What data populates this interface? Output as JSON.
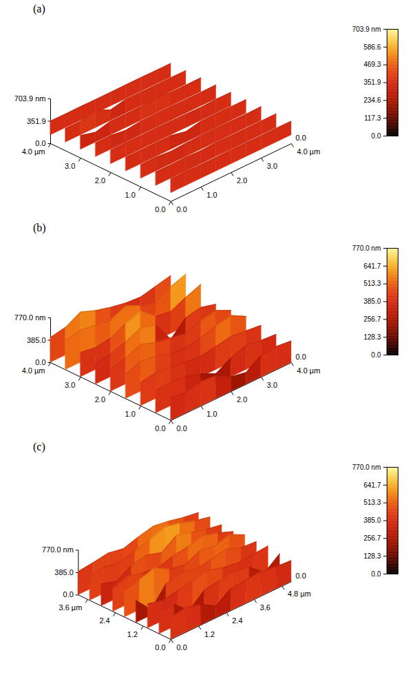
{
  "chart_data": [
    {
      "type": "surface",
      "title": "(a)",
      "x": [
        0,
        0.5,
        1,
        1.5,
        2,
        2.5,
        3,
        3.5,
        4
      ],
      "y": [
        0,
        0.5,
        1,
        1.5,
        2,
        2.5,
        3,
        3.5,
        4
      ],
      "z": [
        [
          352,
          355,
          350,
          348,
          353,
          351,
          349,
          352,
          350
        ],
        [
          350,
          347,
          352,
          340,
          355,
          350,
          348,
          351,
          353
        ],
        [
          349,
          352,
          330,
          345,
          351,
          356,
          350,
          347,
          352
        ],
        [
          353,
          348,
          351,
          350,
          300,
          349,
          352,
          350,
          348
        ],
        [
          350,
          354,
          349,
          352,
          350,
          347,
          340,
          353,
          350
        ],
        [
          348,
          351,
          320,
          350,
          353,
          351,
          349,
          350,
          352
        ],
        [
          352,
          290,
          350,
          349,
          351,
          380,
          350,
          348,
          351
        ],
        [
          350,
          349,
          410,
          300,
          352,
          350,
          349,
          352,
          350
        ],
        [
          351,
          350,
          352,
          349,
          350,
          351,
          353,
          350,
          349
        ]
      ],
      "xlim": [
        0,
        4
      ],
      "xticks": [
        {
          "value": 0,
          "label": "0.0"
        },
        {
          "value": 1,
          "label": "1.0"
        },
        {
          "value": 2,
          "label": "2.0"
        },
        {
          "value": 3,
          "label": "3.0"
        },
        {
          "value": 4,
          "label": "4.0 µm"
        }
      ],
      "ylim": [
        0,
        4
      ],
      "yticks": [
        {
          "value": 0,
          "label": "0.0"
        },
        {
          "value": 1,
          "label": "1.0"
        },
        {
          "value": 2,
          "label": "2.0"
        },
        {
          "value": 3,
          "label": "3.0"
        },
        {
          "value": 4,
          "label": "4.0 µm"
        }
      ],
      "zlim": [
        0,
        703.9
      ],
      "zticks": [
        {
          "value": 0,
          "label": "0.0"
        },
        351.9,
        {
          "value": 703.9,
          "label": "703.9 nm"
        }
      ],
      "colorbar": {
        "range": [
          0,
          703.9
        ],
        "ticks": [
          {
            "value": 0,
            "label": "0.0"
          },
          117.3,
          234.6,
          351.9,
          469.3,
          586.6,
          {
            "value": 703.9,
            "label": "703.9 nm"
          }
        ]
      },
      "annotations": [
        "0.0"
      ]
    },
    {
      "type": "surface",
      "title": "(b)",
      "x": [
        0,
        0.5,
        1,
        1.5,
        2,
        2.5,
        3,
        3.5,
        4
      ],
      "y": [
        0,
        0.5,
        1,
        1.5,
        2,
        2.5,
        3,
        3.5,
        4
      ],
      "z": [
        [
          380,
          360,
          420,
          390,
          250,
          200,
          380,
          400,
          370
        ],
        [
          390,
          410,
          380,
          300,
          180,
          330,
          420,
          380,
          360
        ],
        [
          400,
          450,
          420,
          380,
          360,
          400,
          450,
          420,
          390
        ],
        [
          420,
          520,
          480,
          400,
          380,
          430,
          500,
          560,
          420
        ],
        [
          380,
          450,
          560,
          470,
          420,
          380,
          470,
          520,
          400
        ],
        [
          350,
          400,
          480,
          600,
          520,
          150,
          400,
          450,
          380
        ],
        [
          420,
          380,
          420,
          550,
          640,
          420,
          380,
          500,
          600
        ],
        [
          500,
          560,
          520,
          480,
          600,
          480,
          420,
          560,
          650
        ],
        [
          430,
          480,
          620,
          520,
          450,
          400,
          380,
          440,
          500
        ]
      ],
      "xlim": [
        0,
        4
      ],
      "xticks": [
        {
          "value": 0,
          "label": "0.0"
        },
        {
          "value": 1,
          "label": "1.0"
        },
        {
          "value": 2,
          "label": "2.0"
        },
        {
          "value": 3,
          "label": "3.0"
        },
        {
          "value": 4,
          "label": "4.0 µm"
        }
      ],
      "ylim": [
        0,
        4
      ],
      "yticks": [
        {
          "value": 0,
          "label": "0.0"
        },
        {
          "value": 1,
          "label": "1.0"
        },
        {
          "value": 2,
          "label": "2.0"
        },
        {
          "value": 3,
          "label": "3.0"
        },
        {
          "value": 4,
          "label": "4.0 µm"
        }
      ],
      "zlim": [
        0,
        770
      ],
      "zticks": [
        {
          "value": 0,
          "label": "0.0"
        },
        {
          "value": 385,
          "label": "385.0"
        },
        {
          "value": 770,
          "label": "770.0 nm"
        }
      ],
      "colorbar": {
        "range": [
          0,
          770
        ],
        "ticks": [
          {
            "value": 0,
            "label": "0.0"
          },
          128.3,
          256.7,
          {
            "value": 385,
            "label": "385.0"
          },
          513.3,
          641.7,
          {
            "value": 770,
            "label": "770.0 nm"
          }
        ]
      },
      "annotations": [
        "0.0"
      ]
    },
    {
      "type": "surface",
      "title": "(c)",
      "x": [
        0,
        0.65,
        1.3,
        1.95,
        2.6,
        3.25,
        3.9,
        4.55,
        5.2
      ],
      "y": [
        0,
        0.5,
        1,
        1.5,
        2,
        2.5,
        3,
        3.5,
        4
      ],
      "z": [
        [
          380,
          420,
          350,
          200,
          380,
          400,
          420,
          380,
          360
        ],
        [
          400,
          380,
          150,
          380,
          420,
          450,
          400,
          180,
          380
        ],
        [
          420,
          350,
          400,
          450,
          500,
          420,
          380,
          400,
          420
        ],
        [
          380,
          100,
          420,
          480,
          430,
          470,
          520,
          420,
          400
        ],
        [
          450,
          520,
          600,
          450,
          400,
          520,
          480,
          550,
          420
        ],
        [
          400,
          480,
          420,
          380,
          460,
          500,
          560,
          480,
          380
        ],
        [
          380,
          300,
          450,
          500,
          420,
          600,
          520,
          450,
          400
        ],
        [
          420,
          460,
          400,
          480,
          550,
          640,
          580,
          500,
          440
        ],
        [
          400,
          430,
          470,
          420,
          500,
          560,
          520,
          460,
          420
        ]
      ],
      "xlim": [
        0,
        5.2
      ],
      "xticks": [
        {
          "value": 0,
          "label": "0.0"
        },
        1.2,
        2.4,
        3.6,
        {
          "value": 4.8,
          "label": "4.8 µm"
        }
      ],
      "ylim": [
        0,
        4
      ],
      "yticks": [
        {
          "value": 0,
          "label": "0.0"
        },
        1.2,
        2.4,
        {
          "value": 3.6,
          "label": "3.6 µm"
        }
      ],
      "zlim": [
        0,
        770
      ],
      "zticks": [
        {
          "value": 0,
          "label": "0.0"
        },
        {
          "value": 385,
          "label": "385.0"
        },
        {
          "value": 770,
          "label": "770.0 nm"
        }
      ],
      "colorbar": {
        "range": [
          0,
          770
        ],
        "ticks": [
          {
            "value": 0,
            "label": "0.0"
          },
          128.3,
          256.7,
          {
            "value": 385,
            "label": "385.0"
          },
          513.3,
          641.7,
          {
            "value": 770,
            "label": "770.0 nm"
          }
        ]
      },
      "annotations": [
        "0.0"
      ]
    }
  ]
}
